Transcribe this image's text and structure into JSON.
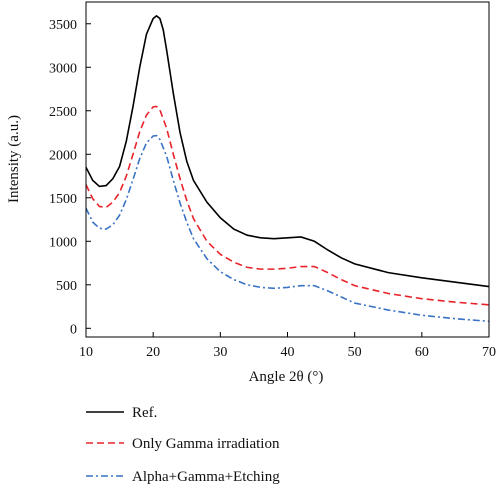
{
  "chart_data": {
    "type": "line",
    "xlabel": "Angle 2θ (°)",
    "ylabel": "Intensity (a.u.)",
    "xlim": [
      10,
      70
    ],
    "ylim": [
      -100,
      3750
    ],
    "xticks": [
      10,
      20,
      30,
      40,
      50,
      60,
      70
    ],
    "yticks": [
      0,
      500,
      1000,
      1500,
      2000,
      2500,
      3000,
      3500
    ],
    "grid": false,
    "legend_position": "below",
    "series": [
      {
        "name": "Ref.",
        "color": "#000000",
        "dash": "solid",
        "x": [
          10,
          11,
          12,
          13,
          14,
          15,
          16,
          17,
          18,
          19,
          20,
          20.5,
          21,
          21.5,
          22,
          23,
          24,
          25,
          26,
          28,
          30,
          32,
          34,
          36,
          38,
          40,
          42,
          44,
          46,
          48,
          50,
          55,
          60,
          65,
          70
        ],
        "y": [
          1850,
          1700,
          1630,
          1640,
          1720,
          1860,
          2150,
          2550,
          3000,
          3380,
          3560,
          3590,
          3560,
          3430,
          3200,
          2700,
          2250,
          1920,
          1700,
          1450,
          1270,
          1140,
          1070,
          1040,
          1030,
          1040,
          1050,
          1000,
          900,
          810,
          740,
          640,
          580,
          530,
          480
        ]
      },
      {
        "name": "Only Gamma irradiation",
        "color": "#e8242a",
        "dash": "dashed",
        "x": [
          10,
          11,
          12,
          13,
          14,
          15,
          16,
          17,
          18,
          19,
          20,
          20.5,
          21,
          22,
          23,
          24,
          25,
          26,
          28,
          30,
          32,
          34,
          36,
          38,
          40,
          42,
          44,
          46,
          48,
          50,
          55,
          60,
          65,
          70
        ],
        "y": [
          1650,
          1490,
          1400,
          1390,
          1450,
          1560,
          1750,
          2000,
          2260,
          2450,
          2545,
          2550,
          2510,
          2300,
          2000,
          1720,
          1470,
          1260,
          1000,
          850,
          760,
          700,
          680,
          680,
          690,
          710,
          710,
          640,
          560,
          490,
          400,
          340,
          300,
          270
        ]
      },
      {
        "name": "Alpha+Gamma+Etching",
        "color": "#3a72c4",
        "dash": "dashdot",
        "x": [
          10,
          11,
          12,
          13,
          14,
          15,
          16,
          17,
          18,
          19,
          20,
          20.5,
          21,
          22,
          23,
          24,
          25,
          26,
          28,
          30,
          32,
          34,
          36,
          38,
          40,
          42,
          44,
          46,
          48,
          50,
          55,
          60,
          65,
          70
        ],
        "y": [
          1380,
          1220,
          1150,
          1140,
          1190,
          1300,
          1480,
          1710,
          1950,
          2130,
          2210,
          2215,
          2170,
          1980,
          1700,
          1440,
          1220,
          1030,
          800,
          650,
          560,
          500,
          470,
          460,
          470,
          490,
          490,
          430,
          360,
          290,
          210,
          150,
          110,
          80
        ]
      }
    ]
  }
}
